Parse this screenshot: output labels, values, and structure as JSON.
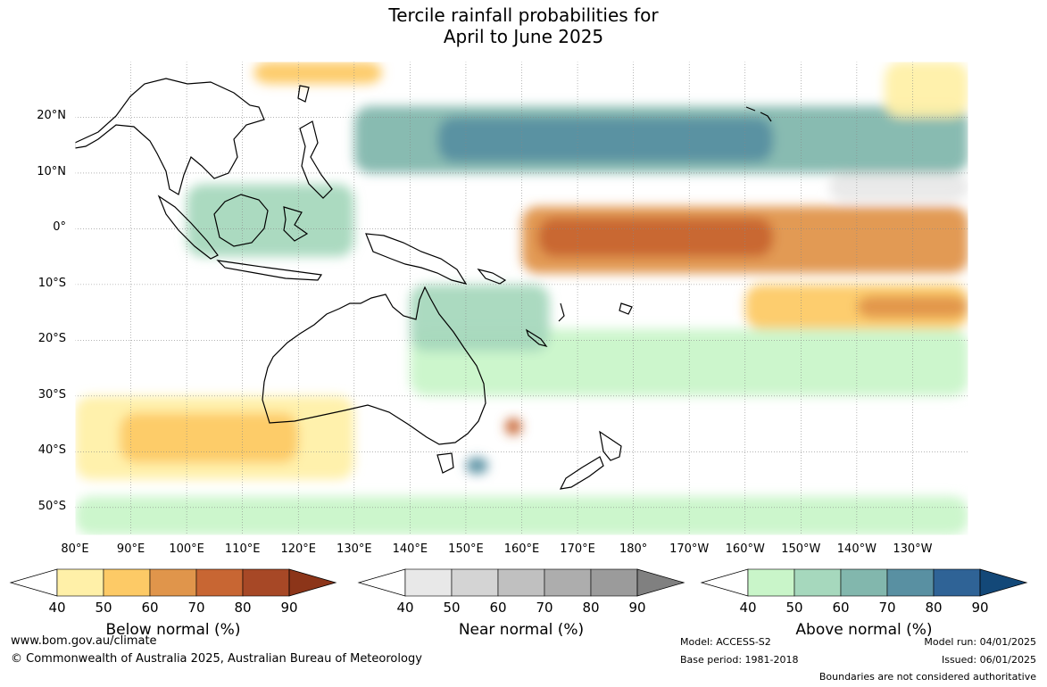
{
  "title": {
    "line1": "Tercile rainfall probabilities for",
    "line2": "April to June 2025"
  },
  "map": {
    "lat_ticks": [
      "20°N",
      "10°N",
      "0°",
      "10°S",
      "20°S",
      "30°S",
      "40°S",
      "50°S"
    ],
    "lat_values": [
      20,
      10,
      0,
      -10,
      -20,
      -30,
      -40,
      -50
    ],
    "lon_ticks": [
      "80°E",
      "90°E",
      "100°E",
      "110°E",
      "120°E",
      "130°E",
      "140°E",
      "150°E",
      "160°E",
      "170°E",
      "180°",
      "170°W",
      "160°W",
      "150°W",
      "140°W",
      "130°W"
    ],
    "lon_values": [
      80,
      90,
      100,
      110,
      120,
      130,
      140,
      150,
      160,
      170,
      180,
      190,
      200,
      210,
      220,
      230
    ],
    "extent": {
      "lon_min": 80,
      "lon_max": 240,
      "lat_min": -55,
      "lat_max": 30
    },
    "colors": {
      "ocean_base": "#ffffff",
      "land_outline": "#000000",
      "grid": "#888888"
    },
    "regions": [
      {
        "kind": "above",
        "level": 3,
        "lon": [
          130,
          240
        ],
        "lat": [
          10,
          22
        ]
      },
      {
        "kind": "above",
        "level": 4,
        "lon": [
          145,
          205
        ],
        "lat": [
          12,
          20
        ]
      },
      {
        "kind": "above",
        "level": 2,
        "lon": [
          100,
          130
        ],
        "lat": [
          -5,
          8
        ]
      },
      {
        "kind": "below",
        "level": 3,
        "lon": [
          160,
          240
        ],
        "lat": [
          -8,
          4
        ]
      },
      {
        "kind": "below",
        "level": 4,
        "lon": [
          163,
          205
        ],
        "lat": [
          -5,
          2
        ]
      },
      {
        "kind": "below",
        "level": 2,
        "lon": [
          200,
          240
        ],
        "lat": [
          -18,
          -10
        ]
      },
      {
        "kind": "below",
        "level": 3,
        "lon": [
          220,
          240
        ],
        "lat": [
          -16,
          -12
        ]
      },
      {
        "kind": "below",
        "level": 1,
        "lon": [
          80,
          130
        ],
        "lat": [
          -45,
          -30
        ]
      },
      {
        "kind": "below",
        "level": 2,
        "lon": [
          88,
          120
        ],
        "lat": [
          -42,
          -33
        ]
      },
      {
        "kind": "above",
        "level": 1,
        "lon": [
          140,
          240
        ],
        "lat": [
          -30,
          -18
        ]
      },
      {
        "kind": "above",
        "level": 2,
        "lon": [
          140,
          165
        ],
        "lat": [
          -22,
          -10
        ]
      },
      {
        "kind": "above",
        "level": 1,
        "lon": [
          80,
          240
        ],
        "lat": [
          -55,
          -48
        ]
      },
      {
        "kind": "below",
        "level": 4,
        "lon": [
          157,
          160
        ],
        "lat": [
          -37,
          -34
        ]
      },
      {
        "kind": "above",
        "level": 4,
        "lon": [
          150,
          154
        ],
        "lat": [
          -44,
          -41
        ]
      },
      {
        "kind": "below",
        "level": 2,
        "lon": [
          112,
          135
        ],
        "lat": [
          26,
          30
        ]
      },
      {
        "kind": "below",
        "level": 1,
        "lon": [
          225,
          240
        ],
        "lat": [
          20,
          30
        ]
      },
      {
        "kind": "near",
        "level": 1,
        "lon": [
          215,
          240
        ],
        "lat": [
          5,
          10
        ]
      }
    ]
  },
  "colorbars": {
    "below": {
      "label": "Below normal (%)",
      "ticks": [
        "40",
        "50",
        "60",
        "70",
        "80",
        "90"
      ],
      "colors": [
        "#fff0a8",
        "#fdca66",
        "#e0954b",
        "#c86633",
        "#a74826",
        "#8c3519"
      ]
    },
    "near": {
      "label": "Near normal (%)",
      "ticks": [
        "40",
        "50",
        "60",
        "70",
        "80",
        "90"
      ],
      "colors": [
        "#e8e8e8",
        "#d4d4d4",
        "#c0c0c0",
        "#adadad",
        "#9b9b9b",
        "#808080"
      ]
    },
    "above": {
      "label": "Above normal (%)",
      "ticks": [
        "40",
        "50",
        "60",
        "70",
        "80",
        "90"
      ],
      "colors": [
        "#c9f5c9",
        "#a6d8bd",
        "#82b7ad",
        "#5990a2",
        "#2f6396",
        "#134878"
      ]
    }
  },
  "footer": {
    "url": "www.bom.gov.au/climate",
    "copyright": "© Commonwealth of Australia 2025, Australian Bureau of Meteorology",
    "model": "Model: ACCESS-S2",
    "base_period": "Base period: 1981-2018",
    "model_run": "Model run: 04/01/2025",
    "issued": "Issued: 06/01/2025",
    "disclaimer": "Boundaries are not considered authoritative"
  }
}
